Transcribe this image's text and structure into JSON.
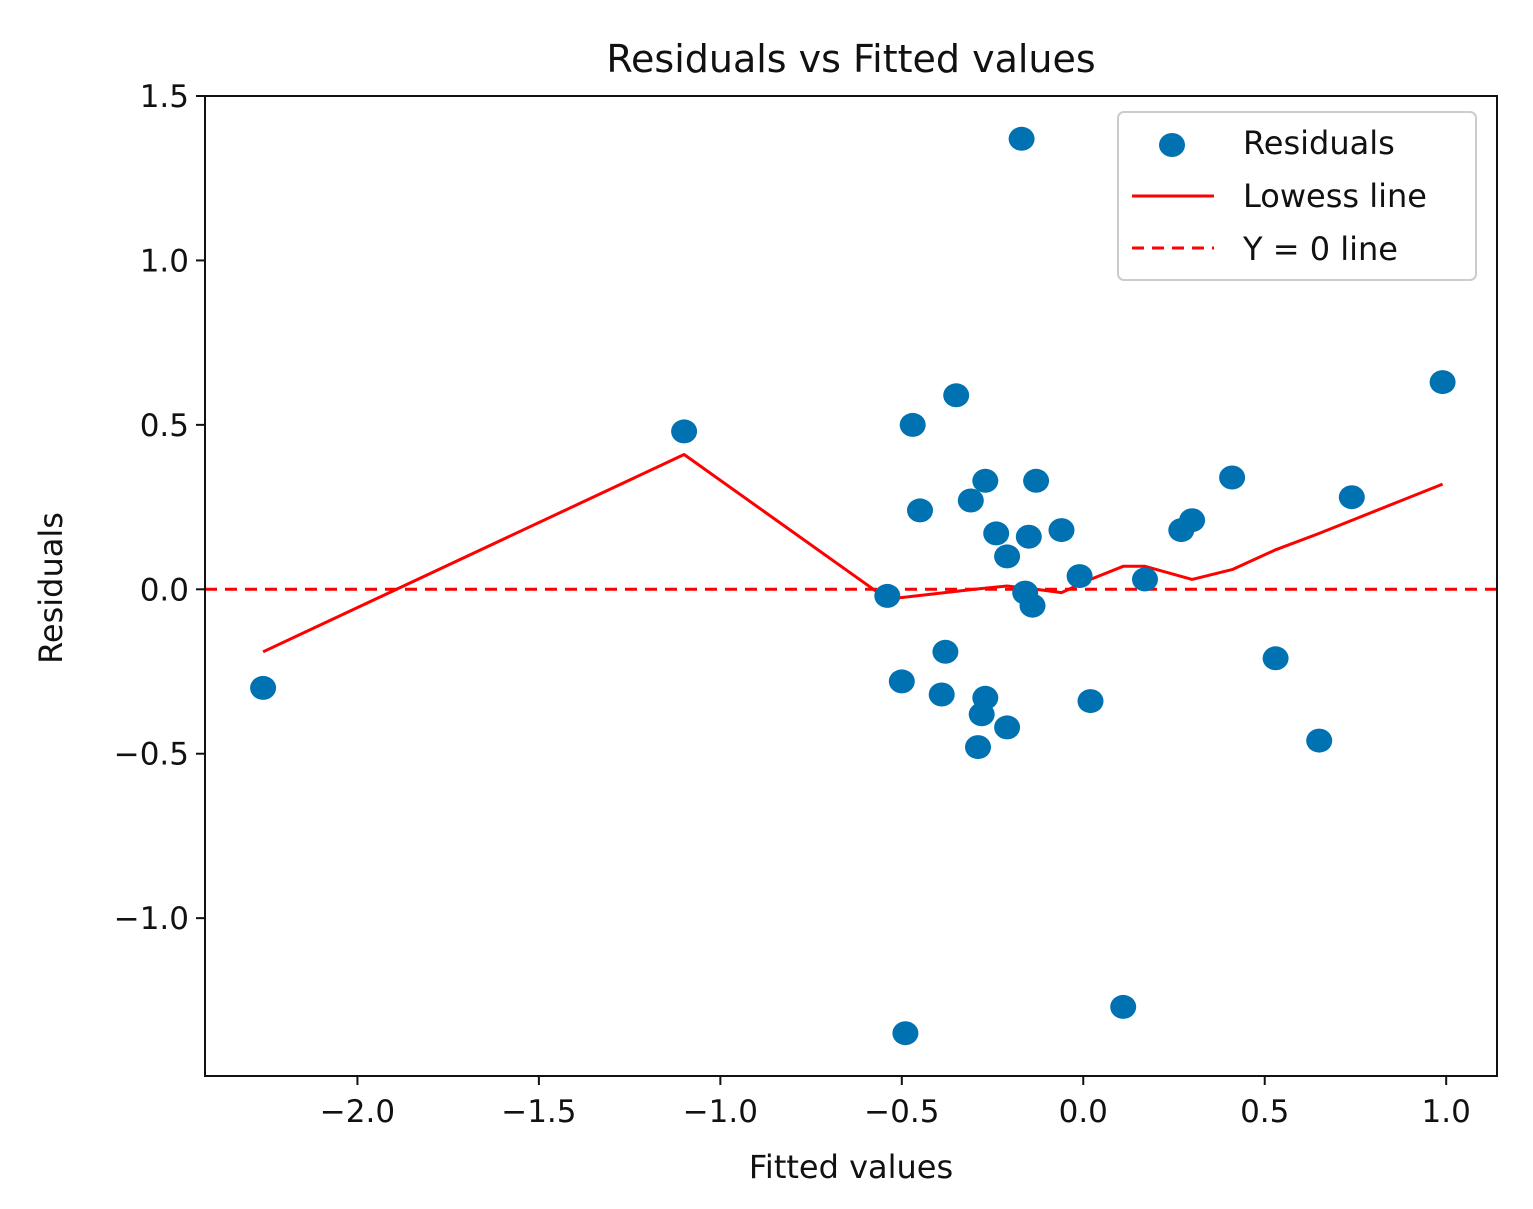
{
  "chart_data": {
    "type": "scatter",
    "title": "Residuals vs Fitted values",
    "xlabel": "Fitted values",
    "ylabel": "Residuals",
    "xlim": [
      -2.42,
      1.14
    ],
    "ylim": [
      -1.48,
      1.5
    ],
    "xticks": [
      -2.0,
      -1.5,
      -1.0,
      -0.5,
      0.0,
      0.5,
      1.0
    ],
    "xtick_labels": [
      "−2.0",
      "−1.5",
      "−1.0",
      "−0.5",
      "0.0",
      "0.5",
      "1.0"
    ],
    "yticks": [
      -1.0,
      -0.5,
      0.0,
      0.5,
      1.0,
      1.5
    ],
    "ytick_labels": [
      "−1.0",
      "−0.5",
      "0.0",
      "0.5",
      "1.0",
      "1.5"
    ],
    "grid": false,
    "legend_position": "upper right",
    "colors": {
      "points": "#0072b2",
      "lowess": "#ff0000",
      "zero_line": "#ff0000",
      "axes": "#111111"
    },
    "series": [
      {
        "name": "Residuals",
        "kind": "scatter",
        "points": [
          [
            -2.26,
            -0.3
          ],
          [
            -1.1,
            0.48
          ],
          [
            -0.54,
            -0.02
          ],
          [
            -0.5,
            -0.28
          ],
          [
            -0.49,
            -1.35
          ],
          [
            -0.47,
            0.5
          ],
          [
            -0.45,
            0.24
          ],
          [
            -0.39,
            -0.32
          ],
          [
            -0.38,
            -0.19
          ],
          [
            -0.35,
            0.59
          ],
          [
            -0.31,
            0.27
          ],
          [
            -0.29,
            -0.48
          ],
          [
            -0.28,
            -0.38
          ],
          [
            -0.27,
            0.33
          ],
          [
            -0.27,
            -0.33
          ],
          [
            -0.24,
            0.17
          ],
          [
            -0.21,
            -0.42
          ],
          [
            -0.21,
            0.1
          ],
          [
            -0.17,
            1.37
          ],
          [
            -0.16,
            -0.01
          ],
          [
            -0.15,
            0.16
          ],
          [
            -0.14,
            -0.05
          ],
          [
            -0.13,
            0.33
          ],
          [
            -0.06,
            0.18
          ],
          [
            -0.01,
            0.04
          ],
          [
            0.02,
            -0.34
          ],
          [
            0.11,
            -1.27
          ],
          [
            0.17,
            0.03
          ],
          [
            0.27,
            0.18
          ],
          [
            0.3,
            0.21
          ],
          [
            0.41,
            0.34
          ],
          [
            0.53,
            -0.21
          ],
          [
            0.65,
            -0.46
          ],
          [
            0.74,
            0.28
          ],
          [
            0.99,
            0.63
          ]
        ]
      },
      {
        "name": "Lowess line",
        "kind": "line",
        "style": "solid",
        "points": [
          [
            -2.26,
            -0.19
          ],
          [
            -1.1,
            0.41
          ],
          [
            -0.54,
            -0.03
          ],
          [
            -0.3,
            0.0
          ],
          [
            -0.21,
            0.01
          ],
          [
            -0.13,
            0.0
          ],
          [
            -0.06,
            -0.01
          ],
          [
            0.02,
            0.03
          ],
          [
            0.11,
            0.07
          ],
          [
            0.17,
            0.07
          ],
          [
            0.3,
            0.03
          ],
          [
            0.41,
            0.06
          ],
          [
            0.53,
            0.12
          ],
          [
            0.65,
            0.17
          ],
          [
            0.99,
            0.32
          ]
        ]
      },
      {
        "name": "Y = 0 line",
        "kind": "hline",
        "style": "dashed",
        "y": 0.0
      }
    ]
  }
}
